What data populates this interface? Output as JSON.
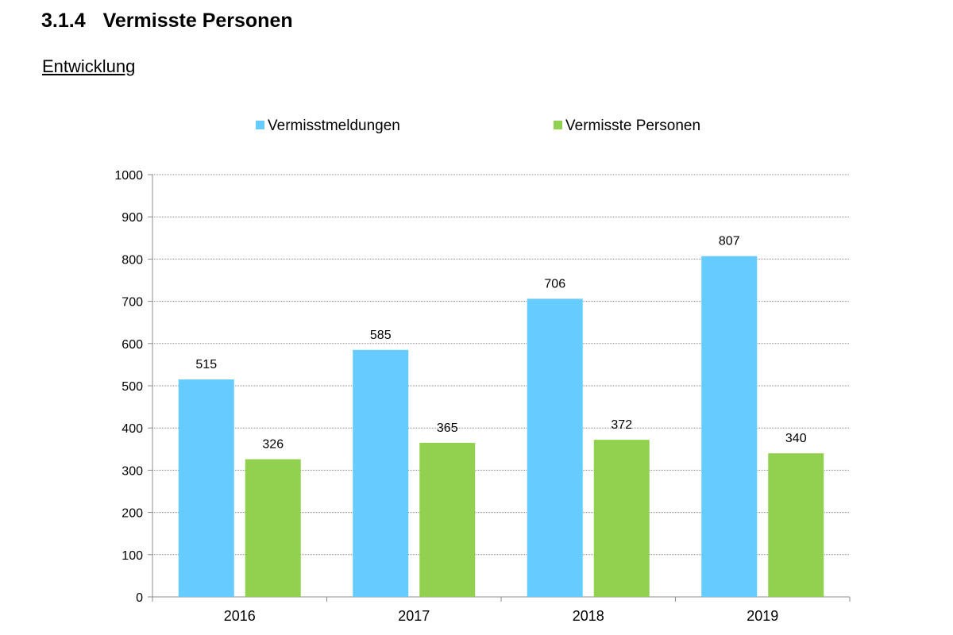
{
  "section": {
    "number": "3.1.4",
    "title": "Vermisste Personen"
  },
  "subtitle": "Entwicklung",
  "chart_data": {
    "type": "bar",
    "title": "",
    "xlabel": "",
    "ylabel": "",
    "ylim": [
      0,
      1000
    ],
    "yticks": [
      0,
      100,
      200,
      300,
      400,
      500,
      600,
      700,
      800,
      900,
      1000
    ],
    "grid": true,
    "legend_position": "top",
    "categories": [
      "2016",
      "2017",
      "2018",
      "2019"
    ],
    "series": [
      {
        "name": "Vermisstmeldungen",
        "color": "#66CCFF",
        "values": [
          515,
          585,
          706,
          807
        ]
      },
      {
        "name": "Vermisste Personen",
        "color": "#92D050",
        "values": [
          326,
          365,
          372,
          340
        ]
      }
    ]
  }
}
